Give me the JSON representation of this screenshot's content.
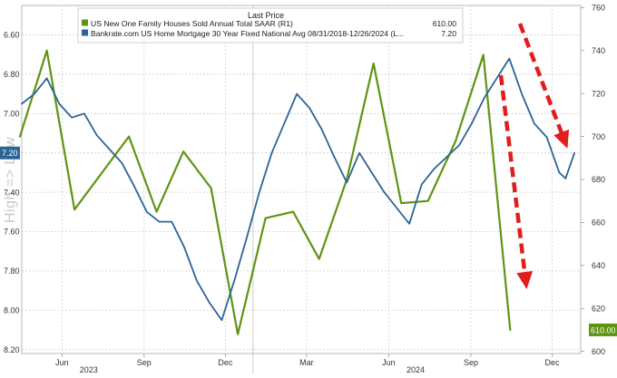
{
  "chart_data": {
    "type": "line",
    "legend": {
      "header": "Last Price",
      "placement": "top-center",
      "entries": [
        {
          "label": "US New One Family Houses Sold Annual Total SAAR  (R1)",
          "value": "610.00",
          "color": "#5f9413"
        },
        {
          "label": "Bankrate.com US Home Mortgage 30 Year Fixed National Avg 08/31/2018-12/26/2024   (L...",
          "value": "7.20",
          "color": "#2c6496"
        }
      ]
    },
    "left_axis": {
      "inverted": true,
      "range": [
        6.45,
        8.22
      ],
      "ticks": [
        "6.60",
        "6.80",
        "7.00",
        "7.20",
        "7.40",
        "7.60",
        "7.80",
        "8.00",
        "8.20"
      ],
      "last_value_label": "7.20",
      "last_value_color": "#2c6496"
    },
    "right_axis": {
      "range": [
        599,
        761
      ],
      "ticks": [
        "760",
        "740",
        "720",
        "700",
        "680",
        "660",
        "640",
        "620",
        "600"
      ],
      "last_value_label": "610.00",
      "last_value_color": "#5f9413"
    },
    "x_axis": {
      "month_labels": [
        "Jun",
        "Sep",
        "Dec",
        "Mar",
        "Jun",
        "Sep",
        "Dec"
      ],
      "year_labels": [
        "2023",
        "2024"
      ],
      "grid": true
    },
    "series": [
      {
        "name": "US New One Family Houses Sold Annual Total SAAR",
        "axis": "right",
        "color": "#5f9413",
        "points": [
          [
            "2023-04",
            700
          ],
          [
            "2023-05",
            740
          ],
          [
            "2023-06",
            666
          ],
          [
            "2023-08",
            700
          ],
          [
            "2023-09",
            665
          ],
          [
            "2023-10",
            693
          ],
          [
            "2023-11",
            676
          ],
          [
            "2023-12",
            608
          ],
          [
            "2024-01",
            662
          ],
          [
            "2024-02",
            665
          ],
          [
            "2024-03",
            643
          ],
          [
            "2024-04",
            680
          ],
          [
            "2024-05",
            734
          ],
          [
            "2024-06",
            669
          ],
          [
            "2024-07",
            670
          ],
          [
            "2024-08",
            698
          ],
          [
            "2024-09",
            738
          ],
          [
            "2024-10",
            610
          ]
        ]
      },
      {
        "name": "Bankrate.com US Home Mortgage 30 Year Fixed National Avg",
        "axis": "left",
        "color": "#2c6496",
        "points": [
          [
            "2023-04-17",
            6.95
          ],
          [
            "2023-05-01",
            6.9
          ],
          [
            "2023-05-15",
            6.82
          ],
          [
            "2023-05-29",
            6.95
          ],
          [
            "2023-06-12",
            7.02
          ],
          [
            "2023-06-26",
            7.0
          ],
          [
            "2023-07-10",
            7.11
          ],
          [
            "2023-07-24",
            7.18
          ],
          [
            "2023-08-07",
            7.25
          ],
          [
            "2023-08-21",
            7.37
          ],
          [
            "2023-09-04",
            7.5
          ],
          [
            "2023-09-18",
            7.55
          ],
          [
            "2023-10-02",
            7.55
          ],
          [
            "2023-10-16",
            7.68
          ],
          [
            "2023-10-30",
            7.85
          ],
          [
            "2023-11-13",
            7.96
          ],
          [
            "2023-11-27",
            8.05
          ],
          [
            "2023-12-11",
            7.85
          ],
          [
            "2023-12-25",
            7.63
          ],
          [
            "2024-01-08",
            7.4
          ],
          [
            "2024-01-22",
            7.2
          ],
          [
            "2024-02-05",
            7.05
          ],
          [
            "2024-02-19",
            6.9
          ],
          [
            "2024-03-04",
            6.97
          ],
          [
            "2024-03-18",
            7.08
          ],
          [
            "2024-04-01",
            7.22
          ],
          [
            "2024-04-15",
            7.35
          ],
          [
            "2024-04-29",
            7.2
          ],
          [
            "2024-05-13",
            7.3
          ],
          [
            "2024-05-27",
            7.4
          ],
          [
            "2024-06-10",
            7.48
          ],
          [
            "2024-06-24",
            7.56
          ],
          [
            "2024-07-08",
            7.36
          ],
          [
            "2024-07-22",
            7.28
          ],
          [
            "2024-08-05",
            7.22
          ],
          [
            "2024-08-19",
            7.16
          ],
          [
            "2024-09-02",
            7.05
          ],
          [
            "2024-09-16",
            6.92
          ],
          [
            "2024-09-30",
            6.82
          ],
          [
            "2024-10-14",
            6.72
          ],
          [
            "2024-10-28",
            6.9
          ],
          [
            "2024-11-11",
            7.05
          ],
          [
            "2024-11-25",
            7.12
          ],
          [
            "2024-12-09",
            7.3
          ],
          [
            "2024-12-16",
            7.33
          ],
          [
            "2024-12-26",
            7.2
          ]
        ]
      }
    ],
    "annotations": [
      {
        "type": "dashed-arrow",
        "color": "#e01e1e"
      },
      {
        "type": "dashed-arrow",
        "color": "#e01e1e"
      }
    ],
    "watermark": "High => Low"
  }
}
